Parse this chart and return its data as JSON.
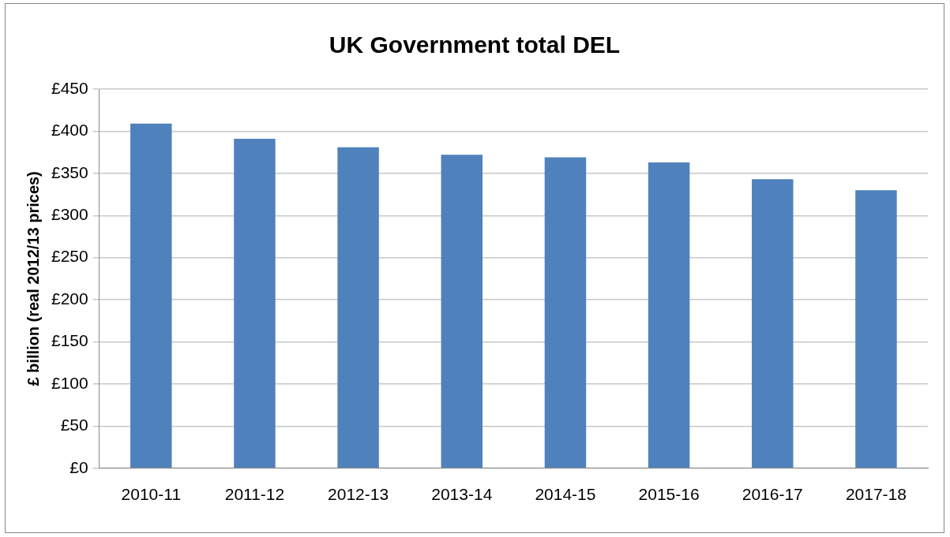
{
  "chart_data": {
    "type": "bar",
    "title": "UK Government total DEL",
    "ylabel": "£ billion (real 2012/13 prices)",
    "categories": [
      "2010-11",
      "2011-12",
      "2012-13",
      "2013-14",
      "2014-15",
      "2015-16",
      "2016-17",
      "2017-18"
    ],
    "values": [
      409,
      391,
      381,
      372,
      369,
      363,
      343,
      330
    ],
    "color": "#4f81bd",
    "ylim": [
      0,
      450
    ],
    "yticks": [
      {
        "value": 0,
        "label": "£0"
      },
      {
        "value": 50,
        "label": "£50"
      },
      {
        "value": 100,
        "label": "£100"
      },
      {
        "value": 150,
        "label": "£150"
      },
      {
        "value": 200,
        "label": "£200"
      },
      {
        "value": 250,
        "label": "£250"
      },
      {
        "value": 300,
        "label": "£300"
      },
      {
        "value": 350,
        "label": "£350"
      },
      {
        "value": 400,
        "label": "£400"
      },
      {
        "value": 450,
        "label": "£450"
      }
    ],
    "grid": "y",
    "legend": false
  }
}
